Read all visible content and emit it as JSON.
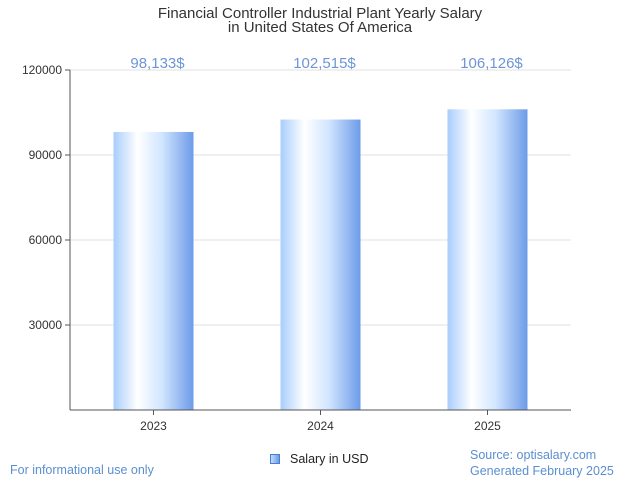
{
  "chart_data": {
    "type": "bar",
    "title": [
      "Financial Controller Industrial Plant Yearly Salary",
      "in United States Of America"
    ],
    "categories": [
      "2023",
      "2024",
      "2025"
    ],
    "values": [
      98133,
      102515,
      106126
    ],
    "value_labels": [
      "98,133$",
      "102,515$",
      "106,126$"
    ],
    "yticks": [
      30000,
      60000,
      90000,
      120000
    ],
    "ylim": [
      0,
      120000
    ],
    "legend": "Salary in USD",
    "grid": true
  },
  "footer": {
    "left": "For informational use only",
    "source": "Source: optisalary.com",
    "generated": "Generated February 2025"
  },
  "colors": {
    "bar_light": "#ffffff",
    "bar_mid": "#bfdcff",
    "bar_dark": "#6d9be8",
    "label": "#6d95d6",
    "footer": "#5b8fd1",
    "axis": "#555555",
    "grid": "#e2e2e2"
  }
}
